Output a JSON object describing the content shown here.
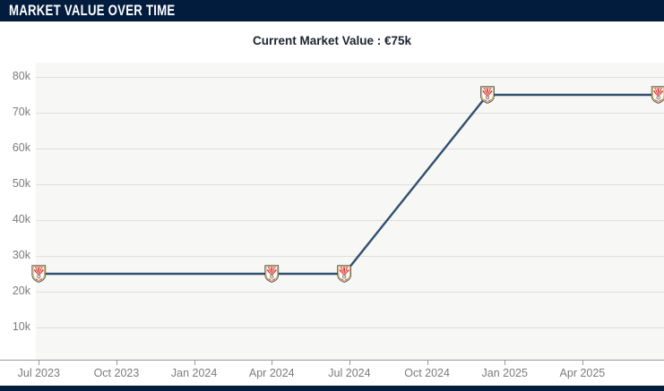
{
  "header": {
    "title": "MARKET VALUE OVER TIME"
  },
  "subtitle": "Current Market Value : €75k",
  "colors": {
    "header_bg": "#021c3e",
    "page_bg": "#ffffff",
    "plot_bg": "#f7f7f5",
    "grid": "#dededd",
    "axis": "#9a9a9a",
    "tick_label": "#7b7b7b",
    "subtitle_text": "#1b2430",
    "line": "#31506f",
    "crest_red": "#d22b31",
    "crest_gold": "#c8a34b",
    "crest_outline": "#3a3f4a",
    "crest_field": "#fffdf4"
  },
  "chart_data": {
    "type": "line",
    "title": "Current Market Value : €75k",
    "current_value": "€75k",
    "marker": "club-crest",
    "grid": "horizontal",
    "legend": "none",
    "x_ticks": [
      "Jul 2023",
      "Oct 2023",
      "Jan 2024",
      "Apr 2024",
      "Jul 2024",
      "Oct 2024",
      "Jan 2025",
      "Apr 2025"
    ],
    "y_ticks": [
      "80k",
      "70k",
      "60k",
      "50k",
      "40k",
      "30k",
      "20k",
      "10k"
    ],
    "y_axis": {
      "min": 10000,
      "max": 80000,
      "unit": "€"
    },
    "points": [
      {
        "date": "2023-07-01",
        "label": "Jul 2023",
        "value": 25000,
        "display": "€25k"
      },
      {
        "date": "2024-04-01",
        "label": "Apr 2024",
        "value": 25000,
        "display": "€25k"
      },
      {
        "date": "2024-06-25",
        "label": "Jun 2024",
        "value": 25000,
        "display": "€25k"
      },
      {
        "date": "2024-12-11",
        "label": "Dec 2024",
        "value": 75000,
        "display": "€75k"
      },
      {
        "date": "2025-06-29",
        "label": "Jun 2025",
        "value": 75000,
        "display": "€75k"
      }
    ]
  }
}
